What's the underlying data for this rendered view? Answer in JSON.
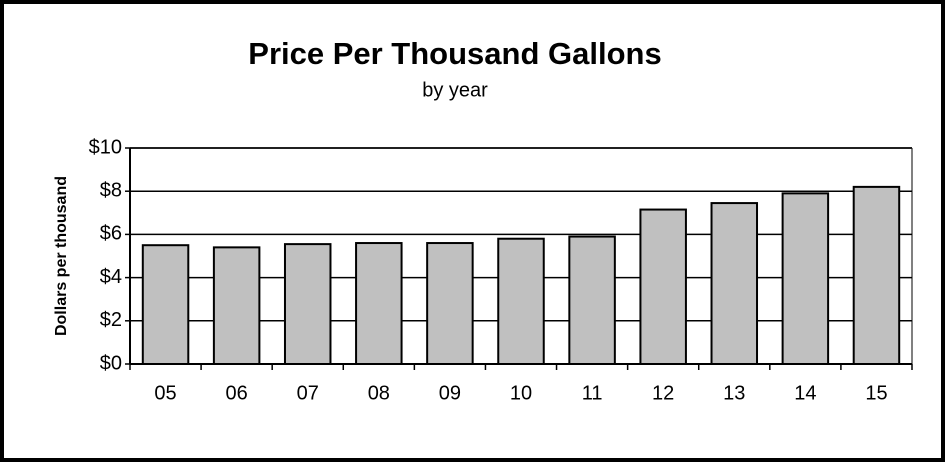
{
  "chart_data": {
    "type": "bar",
    "title": "Price Per Thousand Gallons",
    "subtitle": "by year",
    "y_label": "Dollars per thousand",
    "categories": [
      "05",
      "06",
      "07",
      "08",
      "09",
      "10",
      "11",
      "12",
      "13",
      "14",
      "15"
    ],
    "values": [
      5.5,
      5.4,
      5.55,
      5.6,
      5.6,
      5.8,
      5.9,
      7.15,
      7.45,
      7.9,
      8.2
    ],
    "color": "#c0c0c0",
    "ylim": [
      0,
      10
    ],
    "yticks": [
      {
        "value": 0,
        "label": "$0"
      },
      {
        "value": 2,
        "label": "$2"
      },
      {
        "value": 4,
        "label": "$4"
      },
      {
        "value": 6,
        "label": "$6"
      },
      {
        "value": 8,
        "label": "$8"
      },
      {
        "value": 10,
        "label": "$10"
      }
    ],
    "grid": true
  }
}
